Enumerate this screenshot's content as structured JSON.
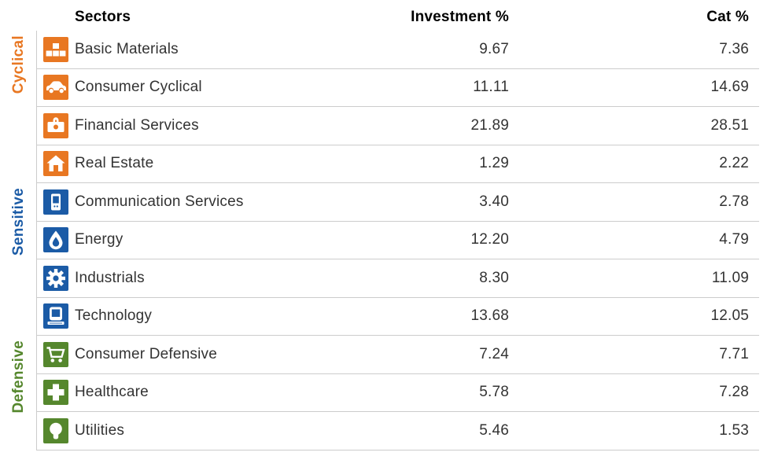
{
  "table": {
    "columns": {
      "sectors": "Sectors",
      "investment": "Investment %",
      "cat": "Cat %"
    },
    "groups": [
      {
        "label": "Cyclical",
        "color": "#E87722",
        "sectors": [
          {
            "name": "Basic Materials",
            "icon": "basic-materials",
            "investment": "9.67",
            "cat": "7.36"
          },
          {
            "name": "Consumer Cyclical",
            "icon": "consumer-cyclical",
            "investment": "11.11",
            "cat": "14.69"
          },
          {
            "name": "Financial Services",
            "icon": "financial-services",
            "investment": "21.89",
            "cat": "28.51"
          },
          {
            "name": "Real Estate",
            "icon": "real-estate",
            "investment": "1.29",
            "cat": "2.22"
          }
        ]
      },
      {
        "label": "Sensitive",
        "color": "#1B5BA6",
        "sectors": [
          {
            "name": "Communication Services",
            "icon": "communication-services",
            "investment": "3.40",
            "cat": "2.78"
          },
          {
            "name": "Energy",
            "icon": "energy",
            "investment": "12.20",
            "cat": "4.79"
          },
          {
            "name": "Industrials",
            "icon": "industrials",
            "investment": "8.30",
            "cat": "11.09"
          },
          {
            "name": "Technology",
            "icon": "technology",
            "investment": "13.68",
            "cat": "12.05"
          }
        ]
      },
      {
        "label": "Defensive",
        "color": "#55872D",
        "sectors": [
          {
            "name": "Consumer Defensive",
            "icon": "consumer-defensive",
            "investment": "7.24",
            "cat": "7.71"
          },
          {
            "name": "Healthcare",
            "icon": "healthcare",
            "investment": "5.78",
            "cat": "7.28"
          },
          {
            "name": "Utilities",
            "icon": "utilities",
            "investment": "5.46",
            "cat": "1.53"
          }
        ]
      }
    ]
  }
}
